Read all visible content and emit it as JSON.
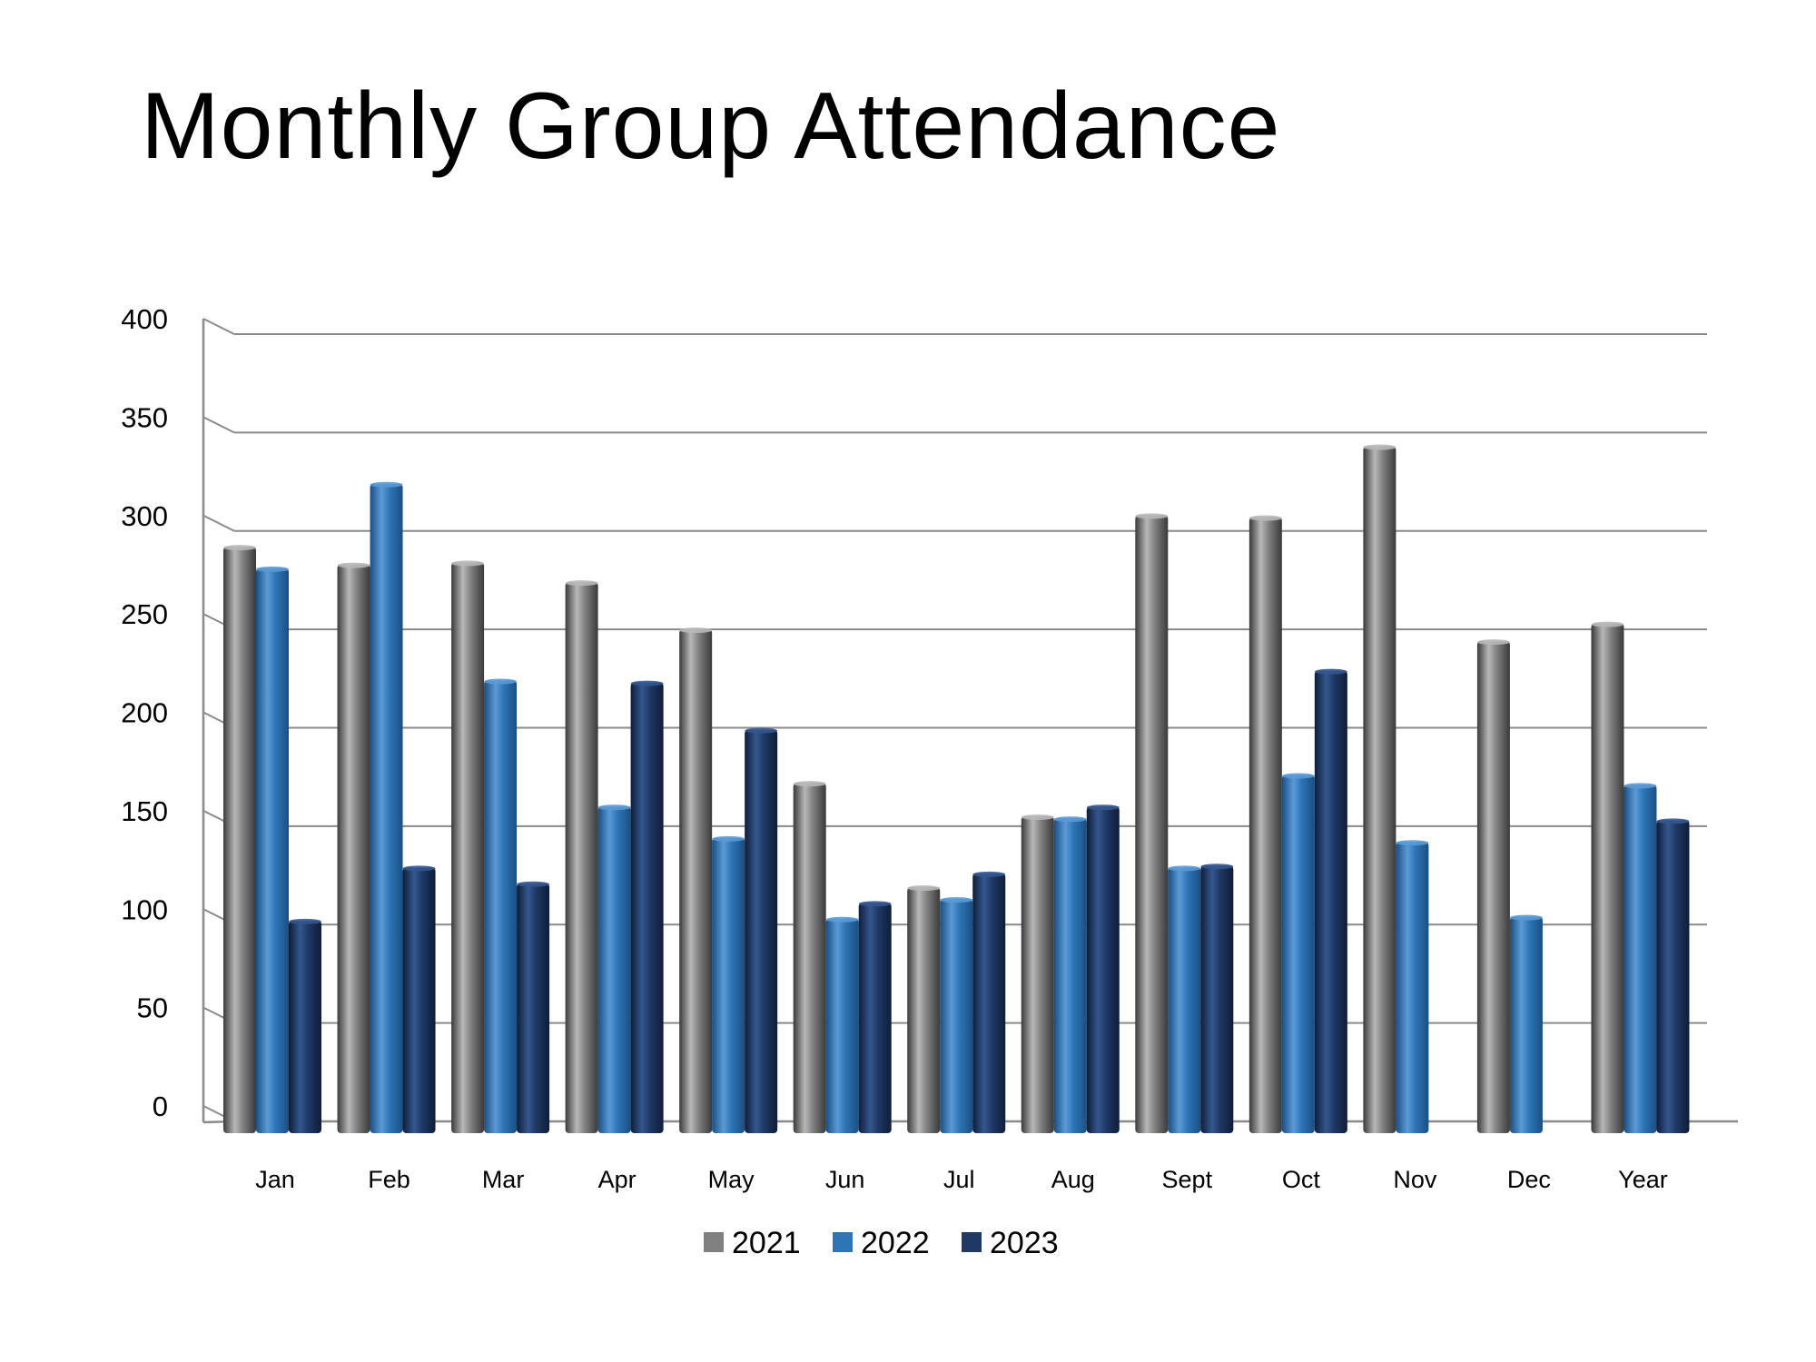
{
  "title": "Monthly Group Attendance",
  "chart_data": {
    "type": "bar",
    "title": "Monthly Group Attendance",
    "xlabel": "",
    "ylabel": "",
    "ylim": [
      0,
      400
    ],
    "yticks": [
      0,
      50,
      100,
      150,
      200,
      250,
      300,
      350,
      400
    ],
    "grid": true,
    "legend_position": "bottom",
    "categories": [
      "Jan",
      "Feb",
      "Mar",
      "Apr",
      "May",
      "Jun",
      "Jul",
      "Aug",
      "Sept",
      "Oct",
      "Nov",
      "Dec",
      "Year"
    ],
    "series": [
      {
        "name": "2021",
        "color": "#808080",
        "dark": "#3a3a3a",
        "light": "#b8b8b8",
        "values": [
          298,
          289,
          290,
          280,
          256,
          178,
          125,
          161,
          314,
          313,
          349,
          250,
          259
        ]
      },
      {
        "name": "2022",
        "color": "#2e75b6",
        "dark": "#1a4f82",
        "light": "#5a9ad6",
        "values": [
          287,
          330,
          230,
          166,
          150,
          109,
          119,
          160,
          135,
          182,
          148,
          110,
          177
        ]
      },
      {
        "name": "2023",
        "color": "#1f3864",
        "dark": "#0f1d38",
        "light": "#34578f",
        "values": [
          108,
          135,
          127,
          229,
          205,
          117,
          132,
          166,
          136,
          235,
          null,
          null,
          159
        ]
      }
    ]
  }
}
